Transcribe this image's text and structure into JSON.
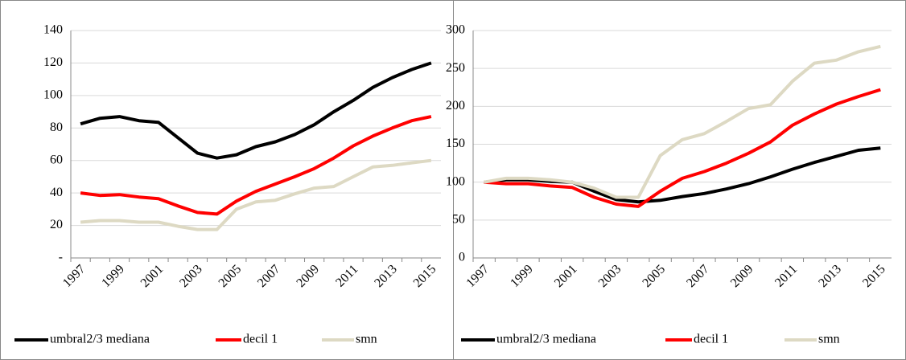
{
  "chart_data": [
    {
      "type": "line",
      "categories": [
        "1997",
        null,
        "1999",
        null,
        "2001",
        null,
        "2003",
        null,
        "2005",
        null,
        "2007",
        null,
        "2009",
        null,
        "2011",
        null,
        "2013",
        null,
        "2015"
      ],
      "series": [
        {
          "name": "umbral2/3 mediana",
          "color": "#000000",
          "values": [
            82.5,
            86,
            87,
            84.5,
            83.5,
            74,
            64.5,
            61.5,
            63.5,
            68.5,
            71.5,
            76,
            82,
            90,
            97,
            105,
            111,
            116,
            120
          ]
        },
        {
          "name": "decil 1",
          "color": "#ff0000",
          "values": [
            40,
            38.5,
            39,
            37.5,
            36.5,
            32,
            28,
            27,
            35,
            41,
            45.5,
            50,
            55,
            61.5,
            69,
            75,
            80,
            84.5,
            87
          ]
        },
        {
          "name": "smn",
          "color": "#ddd9c3",
          "values": [
            22,
            23,
            23,
            22,
            22,
            19.5,
            17.5,
            17.5,
            30,
            34.5,
            35.5,
            39.5,
            43,
            44,
            50,
            56,
            57,
            58.5,
            60
          ]
        }
      ],
      "ylim": [
        0,
        140
      ],
      "yticks": [
        {
          "value": 0,
          "label": "-"
        },
        20,
        40,
        60,
        80,
        100,
        120,
        140
      ],
      "grid": true,
      "legend": "bottom"
    },
    {
      "type": "line",
      "categories": [
        "1997",
        null,
        "1999",
        null,
        "2001",
        null,
        "2003",
        null,
        "2005",
        null,
        "2007",
        null,
        "2009",
        null,
        "2011",
        null,
        "2013",
        null,
        "2015"
      ],
      "series": [
        {
          "name": "umbral2/3 mediana",
          "color": "#000000",
          "values": [
            100,
            103,
            103,
            101,
            100,
            88,
            77,
            74,
            76,
            81,
            85,
            91,
            98,
            107,
            117,
            126,
            134,
            142,
            145
          ]
        },
        {
          "name": "decil 1",
          "color": "#ff0000",
          "values": [
            100,
            98,
            98,
            95,
            93,
            80,
            71,
            68,
            88,
            105,
            114,
            125,
            138,
            153,
            175,
            190,
            203,
            213,
            222
          ]
        },
        {
          "name": "smn",
          "color": "#ddd9c3",
          "values": [
            100,
            105,
            105,
            103,
            100,
            92,
            80,
            80,
            135,
            156,
            164,
            180,
            197,
            202,
            233,
            257,
            261,
            272,
            279
          ]
        }
      ],
      "ylim": [
        0,
        300
      ],
      "yticks": [
        0,
        50,
        100,
        150,
        200,
        250,
        300
      ],
      "grid": true,
      "legend": "bottom"
    }
  ]
}
